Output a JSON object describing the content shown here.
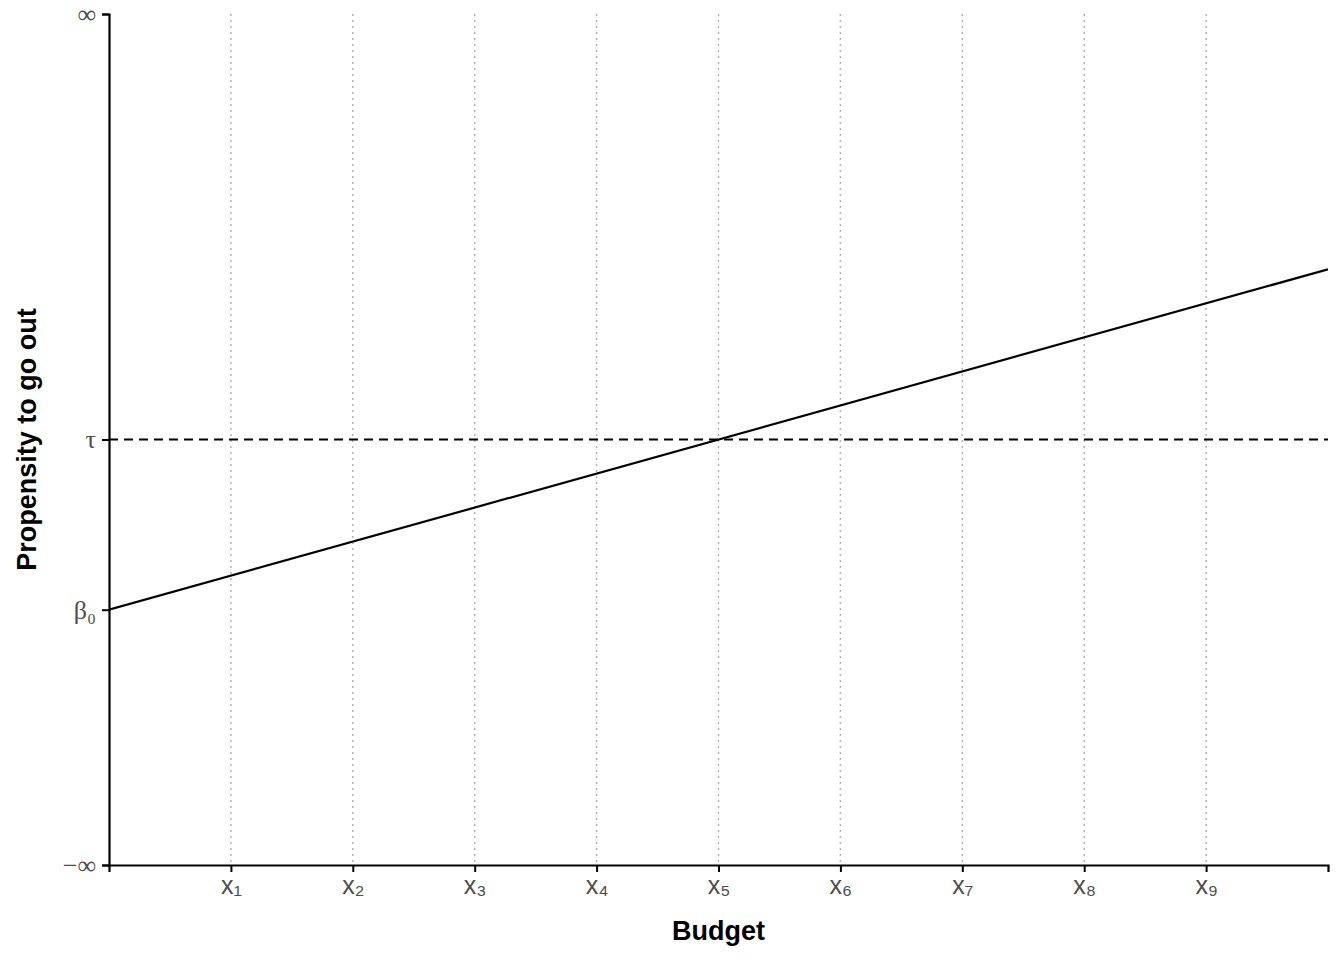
{
  "chart_data": {
    "type": "line",
    "x_label": "Budget",
    "y_label": "Propensity to go out",
    "x": [
      0,
      10
    ],
    "series": [
      {
        "values": [
          -2,
          2
        ],
        "color": "#000000",
        "line_style": "solid"
      }
    ],
    "xlim": [
      0,
      10
    ],
    "xticks": [
      {
        "value": 1,
        "label": "x₁"
      },
      {
        "value": 2,
        "label": "x₂"
      },
      {
        "value": 3,
        "label": "x₃"
      },
      {
        "value": 4,
        "label": "x₄"
      },
      {
        "value": 5,
        "label": "x₅"
      },
      {
        "value": 6,
        "label": "x₆"
      },
      {
        "value": 7,
        "label": "x₇"
      },
      {
        "value": 8,
        "label": "x₈"
      },
      {
        "value": 9,
        "label": "x₉"
      }
    ],
    "ylim": [
      -5,
      5
    ],
    "yticks": [
      {
        "value": -5,
        "label": "−∞"
      },
      {
        "value": -2,
        "label": "β₀"
      },
      {
        "value": 0,
        "label": "τ"
      },
      {
        "value": 5,
        "label": "∞"
      }
    ],
    "reference_line": {
      "value": 0,
      "line_style": "dashed",
      "color": "#000000"
    },
    "grid": true
  }
}
